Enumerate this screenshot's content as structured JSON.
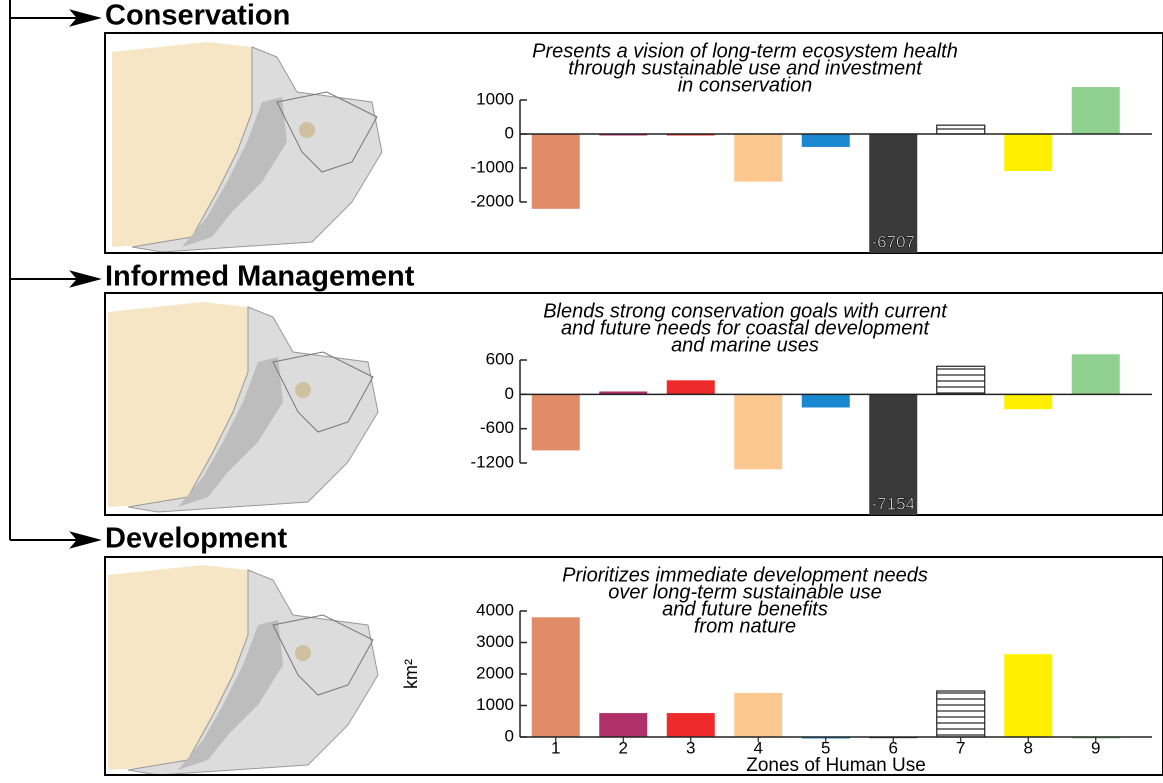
{
  "chart_data": [
    {
      "type": "bar",
      "title": "Conservation",
      "subtitle": [
        "Presents a vision of long-term ecosystem health",
        "through sustainable use and investment",
        "in conservation"
      ],
      "values": [
        -2200,
        -20,
        0,
        -1400,
        -380,
        -6707,
        260,
        -1090,
        1380
      ],
      "value_labels": [
        null,
        null,
        null,
        null,
        null,
        "-6707",
        null,
        null,
        null
      ],
      "colors": [
        "#e08c68",
        "#b0306a",
        "#ee2a2a",
        "#fcc890",
        "#1a88d0",
        "#3a3a3a",
        "#ffffff",
        "#fff000",
        "#90d090"
      ],
      "ylim": [
        -2000,
        1000
      ],
      "yticks": [
        -2000,
        -1000,
        0,
        1000
      ]
    },
    {
      "type": "bar",
      "title": "Informed Management",
      "subtitle": [
        "Blends strong conservation goals with current",
        "and future needs for coastal development",
        "and marine uses"
      ],
      "values": [
        -980,
        50,
        245,
        -1310,
        -230,
        -7154,
        490,
        -260,
        700
      ],
      "value_labels": [
        null,
        null,
        null,
        null,
        null,
        "-7154",
        null,
        null,
        null
      ],
      "colors": [
        "#e08c68",
        "#b0306a",
        "#ee2a2a",
        "#fcc890",
        "#1a88d0",
        "#3a3a3a",
        "#ffffff",
        "#fff000",
        "#90d090"
      ],
      "ylim": [
        -1200,
        600
      ],
      "yticks": [
        -1200,
        -600,
        0,
        600
      ]
    },
    {
      "type": "bar",
      "title": "Development",
      "subtitle": [
        "Prioritizes immediate development needs",
        "over long-term sustainable use",
        "and future benefits",
        "from nature"
      ],
      "categories": [
        "1",
        "2",
        "3",
        "4",
        "5",
        "6",
        "7",
        "8",
        "9"
      ],
      "values": [
        3800,
        760,
        760,
        1400,
        0,
        10,
        1460,
        2630,
        0
      ],
      "colors": [
        "#e08c68",
        "#b0306a",
        "#ee2a2a",
        "#fcc890",
        "#1a88d0",
        "#3a3a3a",
        "#ffffff",
        "#fff000",
        "#90d090"
      ],
      "xlabel": "Zones of Human Use",
      "ylabel": "km²",
      "ylim": [
        0,
        4000
      ],
      "yticks": [
        0,
        1000,
        2000,
        3000,
        4000
      ]
    }
  ]
}
